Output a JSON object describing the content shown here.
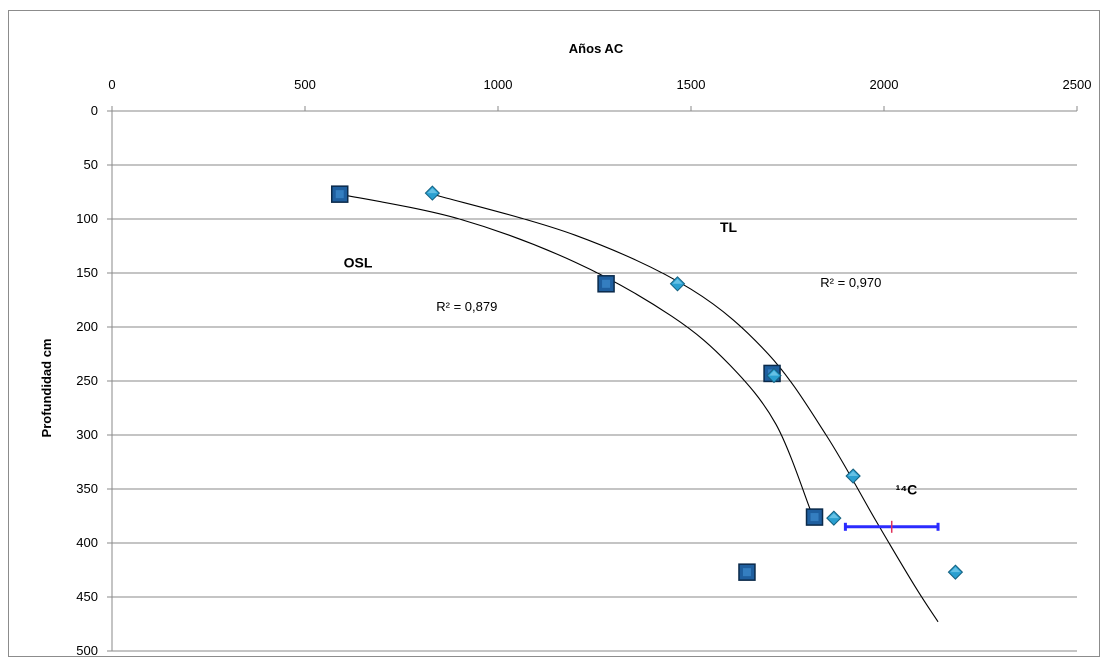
{
  "chart_data": {
    "type": "scatter",
    "title": "",
    "xlabel": "Años AC",
    "ylabel": "Profundidad cm",
    "xlim": [
      0,
      2500
    ],
    "ylim": [
      0,
      500
    ],
    "x_ticks": [
      0,
      500,
      1000,
      1500,
      2000,
      2500
    ],
    "y_ticks": [
      0,
      50,
      100,
      150,
      200,
      250,
      300,
      350,
      400,
      450,
      500
    ],
    "x_axis_position": "top",
    "y_axis_inverted": true,
    "grid": "horizontal",
    "legend": "none",
    "series": [
      {
        "marker": "square",
        "color": "#1f5f9f",
        "points": [
          {
            "x": 590,
            "y": 77
          },
          {
            "x": 1280,
            "y": 160
          },
          {
            "x": 1710,
            "y": 243
          },
          {
            "x": 1820,
            "y": 376
          },
          {
            "x": 1645,
            "y": 427
          }
        ],
        "trendline": [
          [
            590,
            77
          ],
          [
            900,
            100
          ],
          [
            1200,
            140
          ],
          [
            1450,
            190
          ],
          [
            1600,
            235
          ],
          [
            1720,
            290
          ],
          [
            1810,
            370
          ]
        ]
      },
      {
        "marker": "diamond",
        "color": "#2a9fd0",
        "points": [
          {
            "x": 830,
            "y": 76
          },
          {
            "x": 1465,
            "y": 160
          },
          {
            "x": 1715,
            "y": 245
          },
          {
            "x": 1920,
            "y": 338
          },
          {
            "x": 1870,
            "y": 377
          },
          {
            "x": 2185,
            "y": 427
          }
        ],
        "trendline": [
          [
            840,
            78
          ],
          [
            1200,
            115
          ],
          [
            1500,
            165
          ],
          [
            1700,
            225
          ],
          [
            1850,
            300
          ],
          [
            1980,
            380
          ],
          [
            2080,
            440
          ],
          [
            2140,
            473
          ]
        ]
      }
    ],
    "error_bar": {
      "center": {
        "x": 2020,
        "y": 385
      },
      "x_range": [
        1900,
        2140
      ],
      "color": "#2b2bff",
      "center_color": "#e0325a"
    },
    "annotations": [
      {
        "id": "osl",
        "text": "OSL",
        "x": 600,
        "y": 145,
        "style": "bold"
      },
      {
        "id": "tl",
        "text": "TL",
        "x": 1575,
        "y": 112,
        "style": "bold"
      },
      {
        "id": "r2_osl",
        "text": "R² = 0,879",
        "x": 840,
        "y": 185,
        "style": "normal"
      },
      {
        "id": "r2_tl",
        "text": "R² = 0,970",
        "x": 1835,
        "y": 163,
        "style": "normal"
      },
      {
        "id": "c14",
        "text": "¹⁴C",
        "x": 2030,
        "y": 355,
        "style": "bold"
      }
    ]
  }
}
